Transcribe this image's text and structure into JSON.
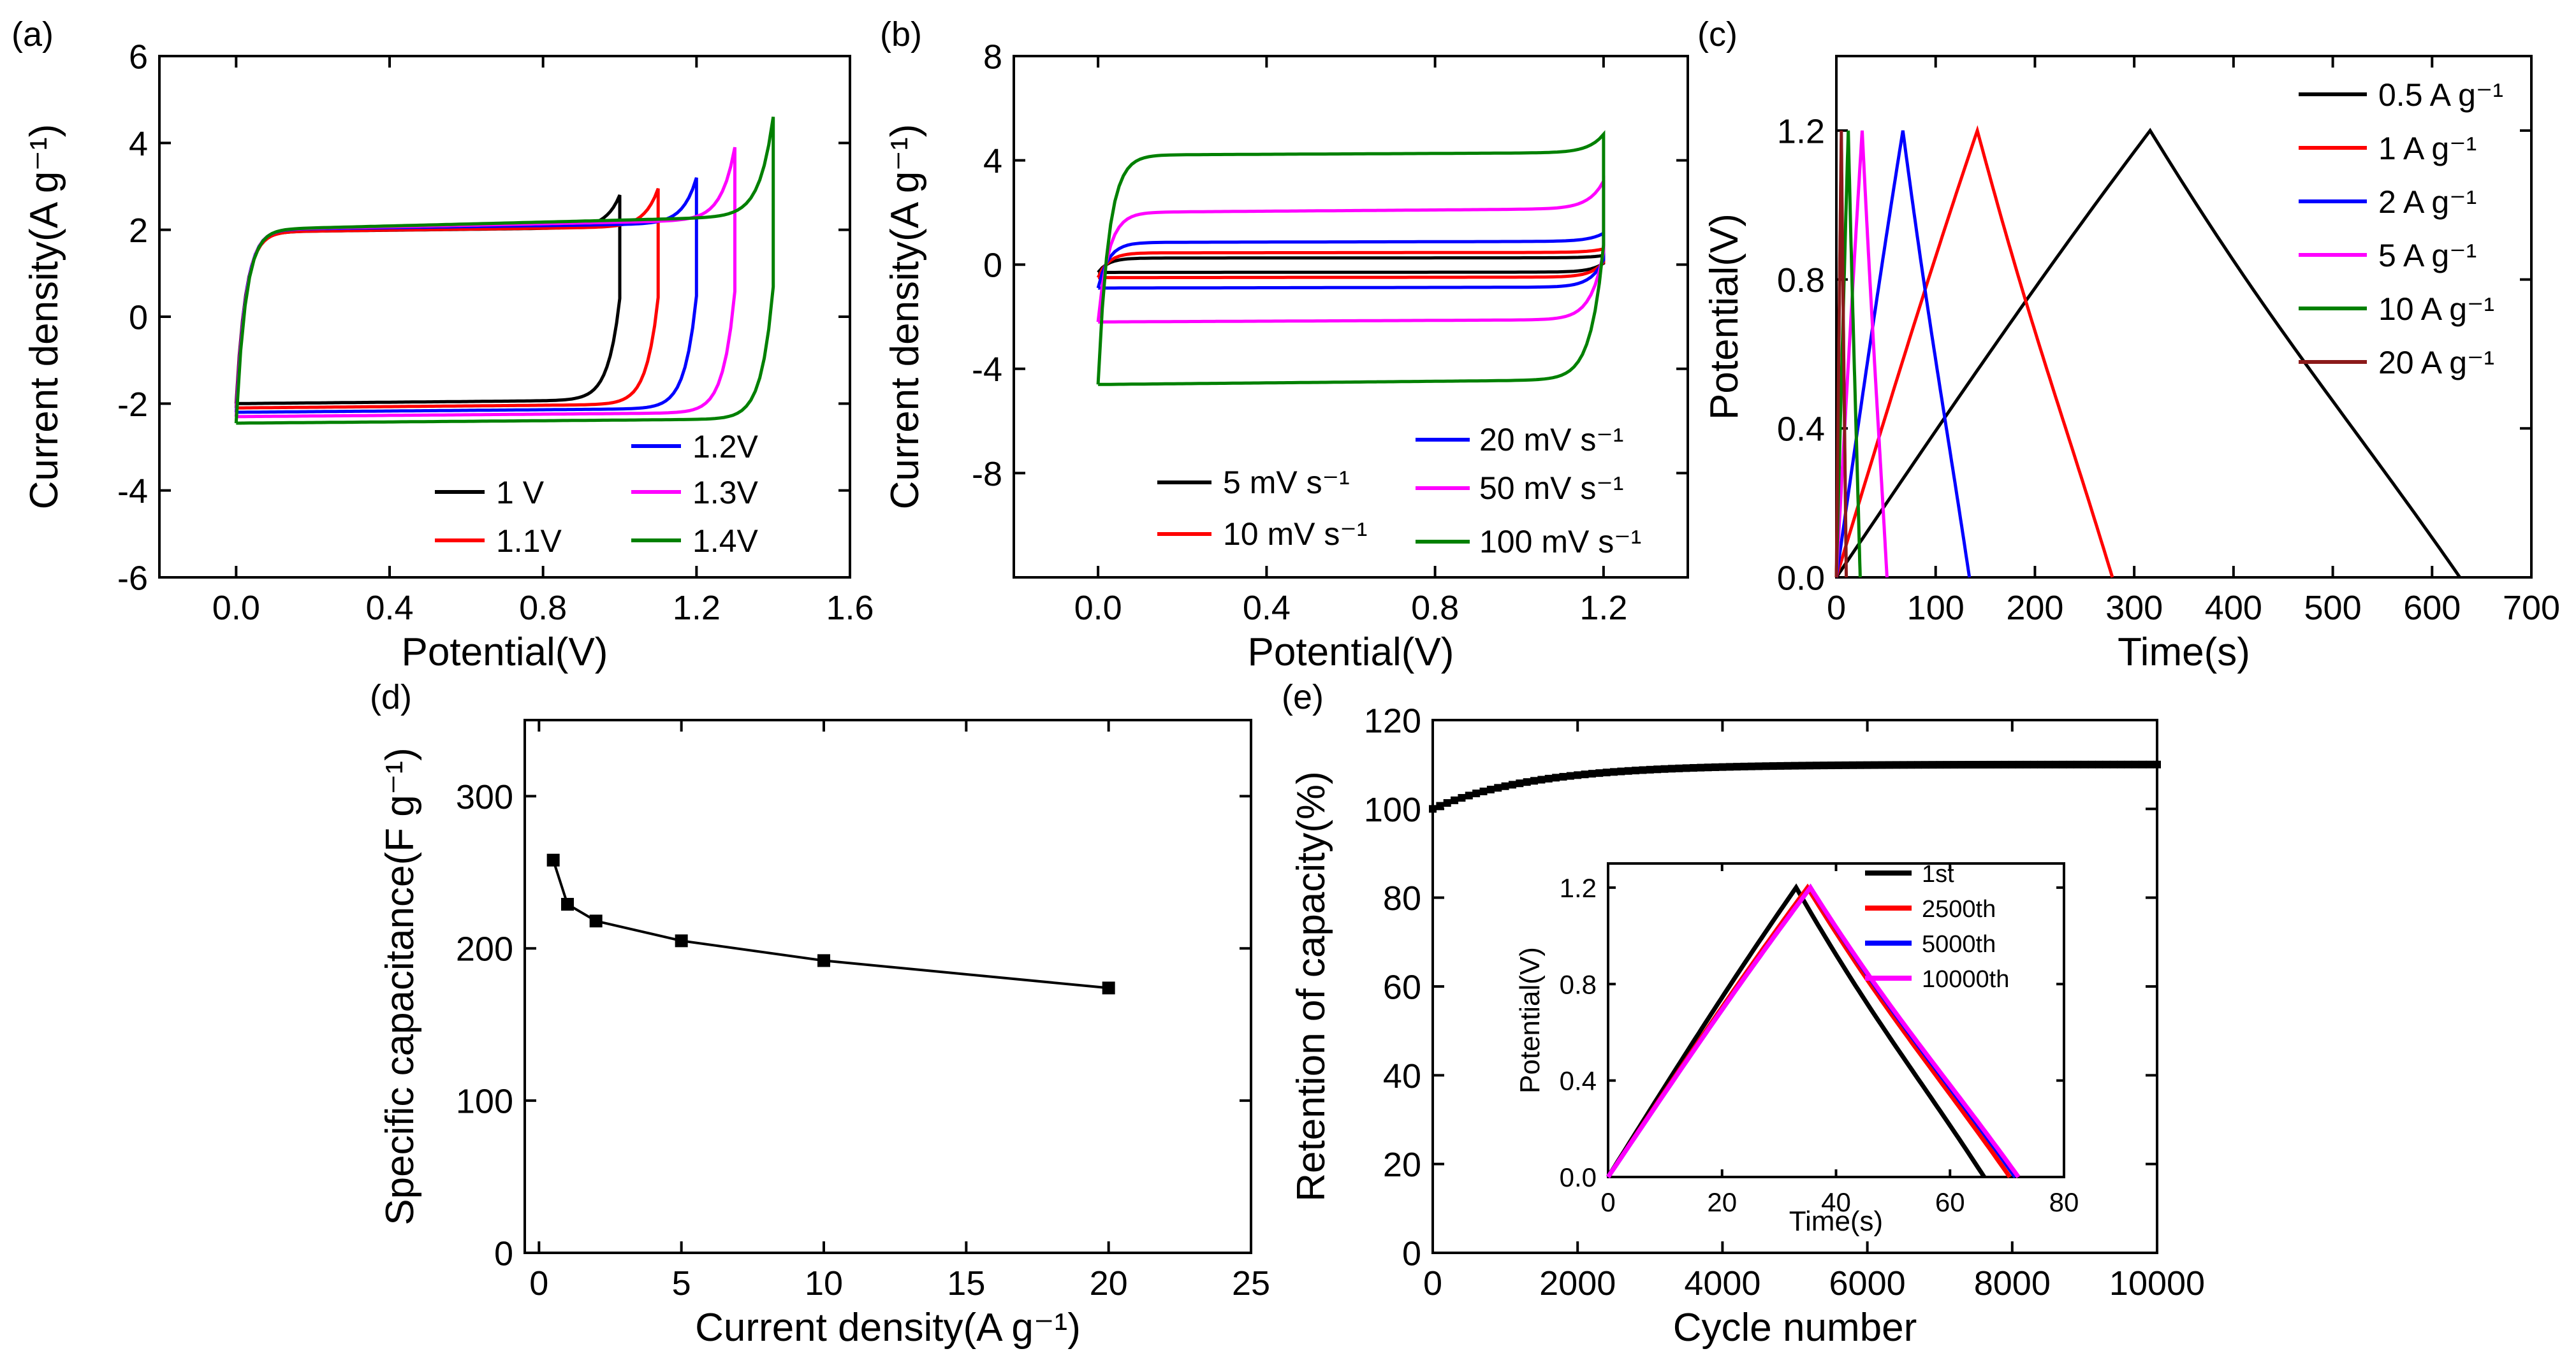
{
  "figure": {
    "panel_labels": [
      "(a)",
      "(b)",
      "(c)",
      "(d)",
      "(e)"
    ]
  },
  "chart_data": [
    {
      "id": "a",
      "type": "line",
      "label": "(a)",
      "xlabel": "Potential(V)",
      "ylabel": "Current density(A g⁻¹)",
      "xlim": [
        -0.2,
        1.6
      ],
      "ylim": [
        -6,
        6
      ],
      "xticks": [
        0.0,
        0.4,
        0.8,
        1.2,
        1.6
      ],
      "xtick_labels": [
        "0.0",
        "0.4",
        "0.8",
        "1.2",
        "1.6"
      ],
      "yticks": [
        -6,
        -4,
        -2,
        0,
        2,
        4,
        6
      ],
      "ytick_labels": [
        "-6",
        "-4",
        "-2",
        "0",
        "2",
        "4",
        "6"
      ],
      "series": [
        {
          "name": "1 V",
          "color": "#000000",
          "vmax": 1.0,
          "anodic": 1.95,
          "cathodic": -2.0,
          "peak": 2.8
        },
        {
          "name": "1.1V",
          "color": "#ff0000",
          "vmax": 1.1,
          "anodic": 1.95,
          "cathodic": -2.1,
          "peak": 2.95
        },
        {
          "name": "1.2V",
          "color": "#0000ff",
          "vmax": 1.2,
          "anodic": 2.0,
          "cathodic": -2.2,
          "peak": 3.2
        },
        {
          "name": "1.3V",
          "color": "#ff00ff",
          "vmax": 1.3,
          "anodic": 2.0,
          "cathodic": -2.3,
          "peak": 3.9
        },
        {
          "name": "1.4V",
          "color": "#008000",
          "vmax": 1.4,
          "anodic": 2.0,
          "cathodic": -2.45,
          "peak": 4.6
        }
      ]
    },
    {
      "id": "b",
      "type": "line",
      "label": "(b)",
      "xlabel": "Potential(V)",
      "ylabel": "Current density(A g⁻¹)",
      "xlim": [
        -0.2,
        1.4
      ],
      "ylim": [
        -12,
        8
      ],
      "xticks": [
        0.0,
        0.4,
        0.8,
        1.2
      ],
      "xtick_labels": [
        "0.0",
        "0.4",
        "0.8",
        "1.2"
      ],
      "yticks": [
        -8,
        -4,
        0,
        4,
        8
      ],
      "ytick_labels": [
        "-8",
        "-4",
        "0",
        "4",
        "8"
      ],
      "series": [
        {
          "name": "5 mV s⁻¹",
          "color": "#000000",
          "vmax": 1.2,
          "anodic": 0.25,
          "cathodic": -0.3,
          "peak": 0.35
        },
        {
          "name": "10 mV s⁻¹",
          "color": "#ff0000",
          "vmax": 1.2,
          "anodic": 0.45,
          "cathodic": -0.5,
          "peak": 0.6
        },
        {
          "name": "20 mV s⁻¹",
          "color": "#0000ff",
          "vmax": 1.2,
          "anodic": 0.85,
          "cathodic": -0.9,
          "peak": 1.2
        },
        {
          "name": "50 mV s⁻¹",
          "color": "#ff00ff",
          "vmax": 1.2,
          "anodic": 2.0,
          "cathodic": -2.2,
          "peak": 3.2
        },
        {
          "name": "100 mV s⁻¹",
          "color": "#008000",
          "vmax": 1.2,
          "anodic": 4.2,
          "cathodic": -4.6,
          "peak": 5.0
        }
      ]
    },
    {
      "id": "c",
      "type": "line",
      "label": "(c)",
      "xlabel": "Time(s)",
      "ylabel": "Potential(V)",
      "xlim": [
        0,
        700
      ],
      "ylim": [
        0,
        1.4
      ],
      "xticks": [
        0,
        100,
        200,
        300,
        400,
        500,
        600,
        700
      ],
      "xtick_labels": [
        "0",
        "100",
        "200",
        "300",
        "400",
        "500",
        "600",
        "700"
      ],
      "yticks": [
        0.0,
        0.4,
        0.8,
        1.2
      ],
      "ytick_labels": [
        "0.0",
        "0.4",
        "0.8",
        "1.2"
      ],
      "series": [
        {
          "name": "0.5 A g⁻¹",
          "color": "#000000",
          "t_charge": 316,
          "t_end": 628,
          "v_max": 1.2
        },
        {
          "name": "1 A g⁻¹",
          "color": "#ff0000",
          "t_charge": 142,
          "t_end": 278,
          "v_max": 1.2
        },
        {
          "name": "2 A g⁻¹",
          "color": "#0000ff",
          "t_charge": 67,
          "t_end": 134,
          "v_max": 1.2
        },
        {
          "name": "5 A g⁻¹",
          "color": "#ff00ff",
          "t_charge": 26,
          "t_end": 51,
          "v_max": 1.2
        },
        {
          "name": "10 A g⁻¹",
          "color": "#008000",
          "t_charge": 12,
          "t_end": 24,
          "v_max": 1.2
        },
        {
          "name": "20 A g⁻¹",
          "color": "#8b1a1a",
          "t_charge": 5,
          "t_end": 10,
          "v_max": 1.2
        }
      ]
    },
    {
      "id": "d",
      "type": "line",
      "label": "(d)",
      "xlabel": "Current density(A g⁻¹)",
      "ylabel": "Specific capacitance(F g⁻¹)",
      "xlim": [
        -0.5,
        25
      ],
      "ylim": [
        0,
        350
      ],
      "xticks": [
        0,
        5,
        10,
        15,
        20,
        25
      ],
      "xtick_labels": [
        "0",
        "5",
        "10",
        "15",
        "20",
        "25"
      ],
      "yticks": [
        0,
        100,
        200,
        300
      ],
      "ytick_labels": [
        "0",
        "100",
        "200",
        "300"
      ],
      "x": [
        0.5,
        1,
        2,
        5,
        10,
        20
      ],
      "y": [
        258,
        229,
        218,
        205,
        192,
        174
      ]
    },
    {
      "id": "e",
      "type": "scatter",
      "label": "(e)",
      "xlabel": "Cycle number",
      "ylabel": "Retention of capacity(%)",
      "xlim": [
        0,
        10000
      ],
      "ylim": [
        0,
        120
      ],
      "xticks": [
        0,
        2000,
        4000,
        6000,
        8000,
        10000
      ],
      "xtick_labels": [
        "0",
        "2000",
        "4000",
        "6000",
        "8000",
        "10000"
      ],
      "yticks": [
        0,
        20,
        40,
        60,
        80,
        100,
        120
      ],
      "ytick_labels": [
        "0",
        "20",
        "40",
        "60",
        "80",
        "100",
        "120"
      ],
      "retention_model": {
        "start": 100,
        "plateau": 110,
        "tau_cycles": 1400,
        "marker_every": 100
      },
      "inset": {
        "xlabel": "Time(s)",
        "ylabel": "Potential(V)",
        "xlim": [
          0,
          80
        ],
        "ylim": [
          0,
          1.3
        ],
        "xticks": [
          0,
          20,
          40,
          60,
          80
        ],
        "xtick_labels": [
          "0",
          "20",
          "40",
          "60",
          "80"
        ],
        "yticks": [
          0.0,
          0.4,
          0.8,
          1.2
        ],
        "ytick_labels": [
          "0.0",
          "0.4",
          "0.8",
          "1.2"
        ],
        "series": [
          {
            "name": "1st",
            "color": "#000000",
            "t_charge": 33,
            "t_end": 66,
            "v_max": 1.2
          },
          {
            "name": "2500th",
            "color": "#ff0000",
            "t_charge": 35,
            "t_end": 70.5,
            "v_max": 1.2
          },
          {
            "name": "5000th",
            "color": "#0000ff",
            "t_charge": 35.5,
            "t_end": 71.5,
            "v_max": 1.2
          },
          {
            "name": "10000th",
            "color": "#ff00ff",
            "t_charge": 35.5,
            "t_end": 72,
            "v_max": 1.2
          }
        ]
      }
    }
  ]
}
